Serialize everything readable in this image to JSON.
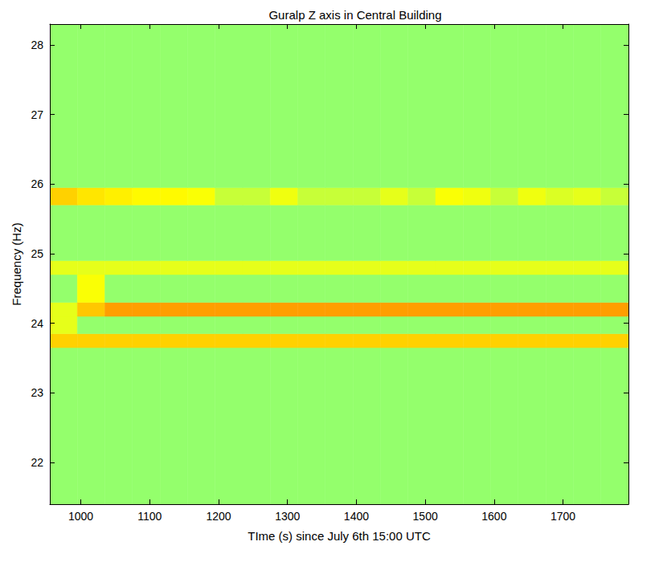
{
  "chart_data": {
    "type": "heatmap",
    "title": "Guralp Z axis in Central Building",
    "xlabel": "TIme (s) since July 6th 15:00 UTC",
    "ylabel": "Frequency (Hz)",
    "xlim": [
      955,
      1795
    ],
    "ylim": [
      21.4,
      28.3
    ],
    "xticks": [
      1000,
      1100,
      1200,
      1300,
      1400,
      1500,
      1600,
      1700
    ],
    "yticks": [
      22,
      23,
      24,
      25,
      26,
      27,
      28
    ],
    "grid": false,
    "x_edges": [
      955,
      995,
      1035,
      1075,
      1115,
      1155,
      1195,
      1235,
      1275,
      1315,
      1355,
      1395,
      1435,
      1475,
      1515,
      1555,
      1595,
      1635,
      1675,
      1715,
      1755,
      1795
    ],
    "y_edges": [
      21.4,
      23.65,
      23.85,
      24.1,
      24.3,
      24.7,
      24.9,
      25.7,
      25.95,
      28.3
    ],
    "color_range": [
      0,
      1
    ],
    "values": [
      [
        0.52,
        0.52,
        0.52,
        0.52,
        0.52,
        0.52,
        0.52,
        0.52,
        0.52,
        0.52,
        0.52,
        0.52,
        0.52,
        0.52,
        0.52,
        0.52,
        0.52,
        0.52,
        0.52,
        0.52,
        0.52
      ],
      [
        0.67,
        0.67,
        0.67,
        0.67,
        0.67,
        0.67,
        0.67,
        0.67,
        0.67,
        0.67,
        0.67,
        0.67,
        0.67,
        0.67,
        0.67,
        0.67,
        0.67,
        0.67,
        0.67,
        0.67,
        0.67
      ],
      [
        0.6,
        0.52,
        0.52,
        0.52,
        0.52,
        0.52,
        0.52,
        0.52,
        0.52,
        0.52,
        0.52,
        0.52,
        0.52,
        0.52,
        0.52,
        0.52,
        0.52,
        0.52,
        0.52,
        0.52,
        0.52
      ],
      [
        0.6,
        0.68,
        0.72,
        0.72,
        0.72,
        0.72,
        0.72,
        0.72,
        0.72,
        0.72,
        0.72,
        0.72,
        0.72,
        0.72,
        0.72,
        0.72,
        0.72,
        0.72,
        0.72,
        0.72,
        0.72
      ],
      [
        0.52,
        0.62,
        0.52,
        0.52,
        0.52,
        0.52,
        0.52,
        0.52,
        0.52,
        0.52,
        0.52,
        0.52,
        0.52,
        0.52,
        0.52,
        0.52,
        0.52,
        0.52,
        0.52,
        0.52,
        0.52
      ],
      [
        0.6,
        0.6,
        0.6,
        0.6,
        0.6,
        0.6,
        0.6,
        0.6,
        0.6,
        0.6,
        0.6,
        0.6,
        0.6,
        0.6,
        0.6,
        0.6,
        0.6,
        0.6,
        0.6,
        0.6,
        0.6
      ],
      [
        0.52,
        0.52,
        0.52,
        0.52,
        0.52,
        0.52,
        0.52,
        0.52,
        0.52,
        0.52,
        0.52,
        0.52,
        0.52,
        0.52,
        0.52,
        0.52,
        0.52,
        0.52,
        0.52,
        0.52,
        0.52
      ],
      [
        0.67,
        0.65,
        0.64,
        0.63,
        0.63,
        0.62,
        0.57,
        0.57,
        0.61,
        0.57,
        0.57,
        0.57,
        0.6,
        0.57,
        0.62,
        0.61,
        0.57,
        0.61,
        0.59,
        0.6,
        0.57
      ],
      [
        0.52,
        0.52,
        0.52,
        0.52,
        0.52,
        0.52,
        0.52,
        0.52,
        0.52,
        0.52,
        0.52,
        0.52,
        0.52,
        0.52,
        0.52,
        0.52,
        0.52,
        0.52,
        0.52,
        0.52,
        0.52
      ]
    ]
  }
}
